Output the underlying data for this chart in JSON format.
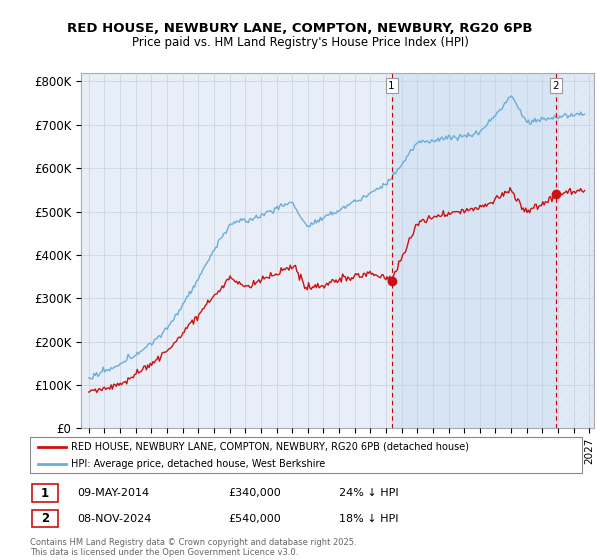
{
  "title": "RED HOUSE, NEWBURY LANE, COMPTON, NEWBURY, RG20 6PB",
  "subtitle": "Price paid vs. HM Land Registry's House Price Index (HPI)",
  "ylabel_ticks": [
    "£0",
    "£100K",
    "£200K",
    "£300K",
    "£400K",
    "£500K",
    "£600K",
    "£700K",
    "£800K"
  ],
  "ytick_values": [
    0,
    100000,
    200000,
    300000,
    400000,
    500000,
    600000,
    700000,
    800000
  ],
  "ylim": [
    0,
    820000
  ],
  "xlim_start": 1994.5,
  "xlim_end": 2027.3,
  "hpi_color": "#6baed6",
  "price_color": "#cc1111",
  "marker1_date": 2014.36,
  "marker1_price": 340000,
  "marker1_label": "09-MAY-2014",
  "marker1_value": "£340,000",
  "marker1_note": "24% ↓ HPI",
  "marker2_date": 2024.86,
  "marker2_price": 540000,
  "marker2_label": "08-NOV-2024",
  "marker2_value": "£540,000",
  "marker2_note": "18% ↓ HPI",
  "legend_house": "RED HOUSE, NEWBURY LANE, COMPTON, NEWBURY, RG20 6PB (detached house)",
  "legend_hpi": "HPI: Average price, detached house, West Berkshire",
  "footer": "Contains HM Land Registry data © Crown copyright and database right 2025.\nThis data is licensed under the Open Government Licence v3.0.",
  "background_color": "#e8eef8",
  "grid_color": "#c8d0e0",
  "fill_color": "#dce8f5",
  "hatch_color": "#d0d8e8",
  "dashed_line_color": "#cc0000"
}
